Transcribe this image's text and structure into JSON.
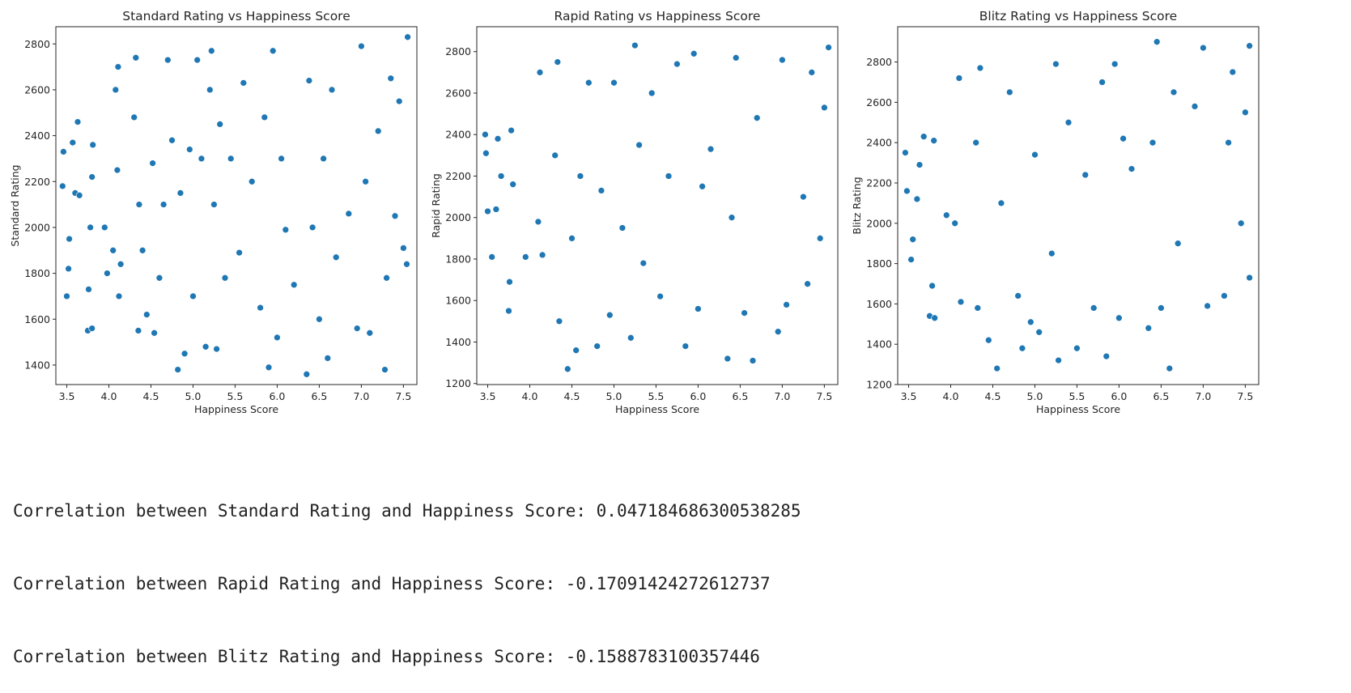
{
  "chart_data": [
    {
      "type": "scatter",
      "title": "Standard Rating vs Happiness Score",
      "xlabel": "Happiness Score",
      "ylabel": "Standard Rating",
      "xlim": [
        3.37,
        7.66
      ],
      "ylim": [
        1315,
        2875
      ],
      "xticks": [
        3.5,
        4.0,
        4.5,
        5.0,
        5.5,
        6.0,
        6.5,
        7.0,
        7.5
      ],
      "yticks": [
        1400,
        1600,
        1800,
        2000,
        2200,
        2400,
        2600,
        2800
      ],
      "color": "#1f77b4",
      "points": [
        [
          3.45,
          2180
        ],
        [
          3.46,
          2330
        ],
        [
          3.5,
          1700
        ],
        [
          3.52,
          1820
        ],
        [
          3.53,
          1950
        ],
        [
          3.57,
          2370
        ],
        [
          3.6,
          2150
        ],
        [
          3.63,
          2460
        ],
        [
          3.65,
          2140
        ],
        [
          3.75,
          1550
        ],
        [
          3.76,
          1730
        ],
        [
          3.78,
          2000
        ],
        [
          3.8,
          2220
        ],
        [
          3.8,
          1560
        ],
        [
          3.81,
          2360
        ],
        [
          3.95,
          2000
        ],
        [
          3.98,
          1800
        ],
        [
          4.05,
          1900
        ],
        [
          4.08,
          2600
        ],
        [
          4.1,
          2250
        ],
        [
          4.11,
          2700
        ],
        [
          4.12,
          1700
        ],
        [
          4.14,
          1840
        ],
        [
          4.3,
          2480
        ],
        [
          4.32,
          2740
        ],
        [
          4.35,
          1550
        ],
        [
          4.36,
          2100
        ],
        [
          4.4,
          1900
        ],
        [
          4.45,
          1620
        ],
        [
          4.52,
          2280
        ],
        [
          4.54,
          1540
        ],
        [
          4.6,
          1780
        ],
        [
          4.65,
          2100
        ],
        [
          4.7,
          2730
        ],
        [
          4.75,
          2380
        ],
        [
          4.82,
          1380
        ],
        [
          4.85,
          2150
        ],
        [
          4.9,
          1450
        ],
        [
          4.96,
          2340
        ],
        [
          5.0,
          1700
        ],
        [
          5.05,
          2730
        ],
        [
          5.1,
          2300
        ],
        [
          5.15,
          1480
        ],
        [
          5.2,
          2600
        ],
        [
          5.22,
          2770
        ],
        [
          5.25,
          2100
        ],
        [
          5.28,
          1470
        ],
        [
          5.32,
          2450
        ],
        [
          5.38,
          1780
        ],
        [
          5.45,
          2300
        ],
        [
          5.55,
          1890
        ],
        [
          5.6,
          2630
        ],
        [
          5.7,
          2200
        ],
        [
          5.8,
          1650
        ],
        [
          5.85,
          2480
        ],
        [
          5.9,
          1390
        ],
        [
          5.95,
          2770
        ],
        [
          6.0,
          1520
        ],
        [
          6.05,
          2300
        ],
        [
          6.1,
          1990
        ],
        [
          6.2,
          1750
        ],
        [
          6.35,
          1360
        ],
        [
          6.38,
          2640
        ],
        [
          6.42,
          2000
        ],
        [
          6.5,
          1600
        ],
        [
          6.55,
          2300
        ],
        [
          6.6,
          1430
        ],
        [
          6.65,
          2600
        ],
        [
          6.7,
          1870
        ],
        [
          6.85,
          2060
        ],
        [
          6.95,
          1560
        ],
        [
          7.0,
          2790
        ],
        [
          7.05,
          2200
        ],
        [
          7.1,
          1540
        ],
        [
          7.2,
          2420
        ],
        [
          7.28,
          1380
        ],
        [
          7.3,
          1780
        ],
        [
          7.35,
          2650
        ],
        [
          7.4,
          2050
        ],
        [
          7.45,
          2550
        ],
        [
          7.5,
          1910
        ],
        [
          7.54,
          1840
        ],
        [
          7.55,
          2830
        ]
      ]
    },
    {
      "type": "scatter",
      "title": "Rapid Rating vs Happiness Score",
      "xlabel": "Happiness Score",
      "ylabel": "Rapid Rating",
      "xlim": [
        3.37,
        7.66
      ],
      "ylim": [
        1195,
        2920
      ],
      "xticks": [
        3.5,
        4.0,
        4.5,
        5.0,
        5.5,
        6.0,
        6.5,
        7.0,
        7.5
      ],
      "yticks": [
        1200,
        1400,
        1600,
        1800,
        2000,
        2200,
        2400,
        2600,
        2800
      ],
      "color": "#1f77b4",
      "points": [
        [
          3.47,
          2400
        ],
        [
          3.48,
          2310
        ],
        [
          3.5,
          2030
        ],
        [
          3.55,
          1810
        ],
        [
          3.6,
          2040
        ],
        [
          3.62,
          2380
        ],
        [
          3.66,
          2200
        ],
        [
          3.75,
          1550
        ],
        [
          3.76,
          1690
        ],
        [
          3.78,
          2420
        ],
        [
          3.8,
          2160
        ],
        [
          3.95,
          1810
        ],
        [
          4.1,
          1980
        ],
        [
          4.12,
          2700
        ],
        [
          4.15,
          1820
        ],
        [
          4.3,
          2300
        ],
        [
          4.33,
          2750
        ],
        [
          4.35,
          1500
        ],
        [
          4.45,
          1270
        ],
        [
          4.5,
          1900
        ],
        [
          4.55,
          1360
        ],
        [
          4.6,
          2200
        ],
        [
          4.7,
          2650
        ],
        [
          4.8,
          1380
        ],
        [
          4.85,
          2130
        ],
        [
          4.95,
          1530
        ],
        [
          5.0,
          2650
        ],
        [
          5.1,
          1950
        ],
        [
          5.2,
          1420
        ],
        [
          5.25,
          2830
        ],
        [
          5.3,
          2350
        ],
        [
          5.35,
          1780
        ],
        [
          5.45,
          2600
        ],
        [
          5.55,
          1620
        ],
        [
          5.65,
          2200
        ],
        [
          5.75,
          2740
        ],
        [
          5.85,
          1380
        ],
        [
          5.95,
          2790
        ],
        [
          6.0,
          1560
        ],
        [
          6.05,
          2150
        ],
        [
          6.15,
          2330
        ],
        [
          6.35,
          1320
        ],
        [
          6.4,
          2000
        ],
        [
          6.45,
          2770
        ],
        [
          6.55,
          1540
        ],
        [
          6.65,
          1310
        ],
        [
          6.7,
          2480
        ],
        [
          6.95,
          1450
        ],
        [
          7.0,
          2760
        ],
        [
          7.05,
          1580
        ],
        [
          7.25,
          2100
        ],
        [
          7.3,
          1680
        ],
        [
          7.35,
          2700
        ],
        [
          7.45,
          1900
        ],
        [
          7.5,
          2530
        ],
        [
          7.55,
          2820
        ]
      ]
    },
    {
      "type": "scatter",
      "title": "Blitz Rating vs Happiness Score",
      "xlabel": "Happiness Score",
      "ylabel": "Blitz Rating",
      "xlim": [
        3.37,
        7.66
      ],
      "ylim": [
        1200,
        2975
      ],
      "xticks": [
        3.5,
        4.0,
        4.5,
        5.0,
        5.5,
        6.0,
        6.5,
        7.0,
        7.5
      ],
      "yticks": [
        1200,
        1400,
        1600,
        1800,
        2000,
        2200,
        2400,
        2600,
        2800
      ],
      "color": "#1f77b4",
      "points": [
        [
          3.46,
          2350
        ],
        [
          3.48,
          2160
        ],
        [
          3.53,
          1820
        ],
        [
          3.55,
          1920
        ],
        [
          3.6,
          2120
        ],
        [
          3.63,
          2290
        ],
        [
          3.68,
          2430
        ],
        [
          3.75,
          1540
        ],
        [
          3.78,
          1690
        ],
        [
          3.8,
          2410
        ],
        [
          3.81,
          1530
        ],
        [
          3.95,
          2040
        ],
        [
          4.05,
          2000
        ],
        [
          4.1,
          2720
        ],
        [
          4.12,
          1610
        ],
        [
          4.3,
          2400
        ],
        [
          4.32,
          1580
        ],
        [
          4.35,
          2770
        ],
        [
          4.45,
          1420
        ],
        [
          4.55,
          1280
        ],
        [
          4.6,
          2100
        ],
        [
          4.7,
          2650
        ],
        [
          4.8,
          1640
        ],
        [
          4.85,
          1380
        ],
        [
          4.95,
          1510
        ],
        [
          5.0,
          2340
        ],
        [
          5.05,
          1460
        ],
        [
          5.2,
          1850
        ],
        [
          5.25,
          2790
        ],
        [
          5.28,
          1320
        ],
        [
          5.4,
          2500
        ],
        [
          5.5,
          1380
        ],
        [
          5.6,
          2240
        ],
        [
          5.7,
          1580
        ],
        [
          5.8,
          2700
        ],
        [
          5.85,
          1340
        ],
        [
          5.95,
          2790
        ],
        [
          6.0,
          1530
        ],
        [
          6.05,
          2420
        ],
        [
          6.15,
          2270
        ],
        [
          6.35,
          1480
        ],
        [
          6.4,
          2400
        ],
        [
          6.45,
          2900
        ],
        [
          6.5,
          1580
        ],
        [
          6.6,
          1280
        ],
        [
          6.65,
          2650
        ],
        [
          6.7,
          1900
        ],
        [
          6.9,
          2580
        ],
        [
          7.0,
          2870
        ],
        [
          7.05,
          1590
        ],
        [
          7.25,
          1640
        ],
        [
          7.3,
          2400
        ],
        [
          7.35,
          2750
        ],
        [
          7.45,
          2000
        ],
        [
          7.5,
          2550
        ],
        [
          7.55,
          2880
        ],
        [
          7.55,
          1730
        ]
      ]
    }
  ],
  "output_lines": [
    "Correlation between Standard Rating and Happiness Score: 0.047184686300538285",
    "Correlation between Rapid Rating and Happiness Score: -0.17091424272612737",
    "Correlation between Blitz Rating and Happiness Score: -0.1588783100357446"
  ]
}
